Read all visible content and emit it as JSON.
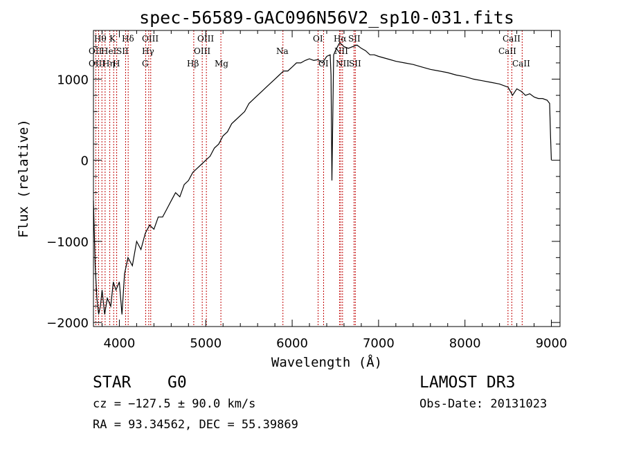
{
  "chart_data": {
    "type": "line",
    "title": "spec-56589-GAC096N56V2_sp10-031.fits",
    "xlabel": "Wavelength (Å)",
    "ylabel": "Flux (relative)",
    "xlim": [
      3700,
      9100
    ],
    "ylim": [
      -2050,
      1600
    ],
    "xticks": [
      4000,
      5000,
      6000,
      7000,
      8000,
      9000
    ],
    "yticks": [
      -2000,
      -1000,
      0,
      1000
    ],
    "grid": false,
    "series": [
      {
        "name": "flux",
        "x": [
          3700,
          3720,
          3740,
          3760,
          3780,
          3800,
          3830,
          3860,
          3900,
          3930,
          3960,
          4000,
          4030,
          4060,
          4100,
          4150,
          4200,
          4250,
          4300,
          4350,
          4400,
          4450,
          4500,
          4550,
          4600,
          4650,
          4700,
          4750,
          4800,
          4850,
          4900,
          4950,
          5000,
          5050,
          5100,
          5150,
          5200,
          5250,
          5300,
          5350,
          5400,
          5450,
          5500,
          5550,
          5600,
          5650,
          5700,
          5750,
          5800,
          5850,
          5900,
          5950,
          6000,
          6050,
          6100,
          6150,
          6200,
          6250,
          6300,
          6350,
          6400,
          6440,
          6450,
          6460,
          6480,
          6500,
          6550,
          6600,
          6650,
          6700,
          6750,
          6800,
          6850,
          6900,
          6950,
          7000,
          7100,
          7200,
          7300,
          7400,
          7500,
          7600,
          7700,
          7800,
          7900,
          8000,
          8100,
          8200,
          8300,
          8400,
          8500,
          8550,
          8600,
          8650,
          8700,
          8750,
          8800,
          8850,
          8900,
          8950,
          8980,
          8990,
          9000
        ],
        "y": [
          -500,
          -1300,
          -1700,
          -1900,
          -1800,
          -1600,
          -1900,
          -1700,
          -1800,
          -1500,
          -1600,
          -1500,
          -1900,
          -1400,
          -1200,
          -1300,
          -1000,
          -1100,
          -900,
          -800,
          -850,
          -700,
          -700,
          -600,
          -500,
          -400,
          -450,
          -300,
          -250,
          -150,
          -100,
          -50,
          0,
          50,
          150,
          200,
          300,
          350,
          450,
          500,
          550,
          600,
          700,
          750,
          800,
          850,
          900,
          950,
          1000,
          1050,
          1100,
          1100,
          1150,
          1200,
          1200,
          1230,
          1250,
          1230,
          1240,
          1200,
          1280,
          1300,
          1050,
          -250,
          1300,
          1350,
          1450,
          1400,
          1380,
          1400,
          1420,
          1380,
          1350,
          1300,
          1300,
          1280,
          1250,
          1220,
          1200,
          1180,
          1150,
          1120,
          1100,
          1080,
          1050,
          1030,
          1000,
          980,
          960,
          940,
          900,
          800,
          880,
          850,
          800,
          820,
          780,
          760,
          760,
          740,
          700,
          300,
          0
        ]
      }
    ],
    "lines": [
      {
        "name": "Hθ",
        "x": 3798
      },
      {
        "name": "OII",
        "x": 3727
      },
      {
        "name": "OIII",
        "x": 3760
      },
      {
        "name": "K",
        "x": 3934
      },
      {
        "name": "H",
        "x": 3969
      },
      {
        "name": "Hη",
        "x": 3835
      },
      {
        "name": "HeI",
        "x": 3889
      },
      {
        "name": "SII",
        "x": 4072
      },
      {
        "name": "Hδ",
        "x": 4102
      },
      {
        "name": "OIII",
        "x": 4363
      },
      {
        "name": "Hγ",
        "x": 4340
      },
      {
        "name": "G",
        "x": 4305
      },
      {
        "name": "Hβ",
        "x": 4861
      },
      {
        "name": "OIII",
        "x": 4959
      },
      {
        "name": "OIII",
        "x": 5007
      },
      {
        "name": "Mg",
        "x": 5175
      },
      {
        "name": "Na",
        "x": 5893
      },
      {
        "name": "OI",
        "x": 6300
      },
      {
        "name": "OI",
        "x": 6364
      },
      {
        "name": "Hα",
        "x": 6563
      },
      {
        "name": "NII",
        "x": 6548
      },
      {
        "name": "NII",
        "x": 6583
      },
      {
        "name": "SII",
        "x": 6716
      },
      {
        "name": "SII",
        "x": 6731
      },
      {
        "name": "CaII",
        "x": 8498
      },
      {
        "name": "CaII",
        "x": 8542
      },
      {
        "name": "CaII",
        "x": 8662
      }
    ]
  },
  "info": {
    "object_class": "STAR",
    "subclass": "G0",
    "survey": "LAMOST DR3",
    "cz": "cz = −127.5 ± 90.0 km/s",
    "obs_date": "Obs-Date: 20131023",
    "coords": "RA =  93.34562, DEC =  55.39869"
  },
  "line_labels": {
    "r1a": "Hθ",
    "r1b": "K",
    "r1c": "Hδ",
    "r1d": "OIII",
    "r1e": "OIII",
    "r1f": "OI",
    "r1g": "Hα",
    "r1h": "SII",
    "r1i": "CaII",
    "r2a": "OII",
    "r2b": "HeI",
    "r2c": "SII",
    "r2d": "Hγ",
    "r2e": "OIII",
    "r2f": "Na",
    "r2g": "NII",
    "r2h": "CaII",
    "r3a": "OIII",
    "r3b": "Hη",
    "r3c": "H",
    "r3d": "G",
    "r3e": "Hβ",
    "r3f": "Mg",
    "r3g": "OI",
    "r3h": "NII",
    "r3i": "SII",
    "r3j": "CaII"
  }
}
